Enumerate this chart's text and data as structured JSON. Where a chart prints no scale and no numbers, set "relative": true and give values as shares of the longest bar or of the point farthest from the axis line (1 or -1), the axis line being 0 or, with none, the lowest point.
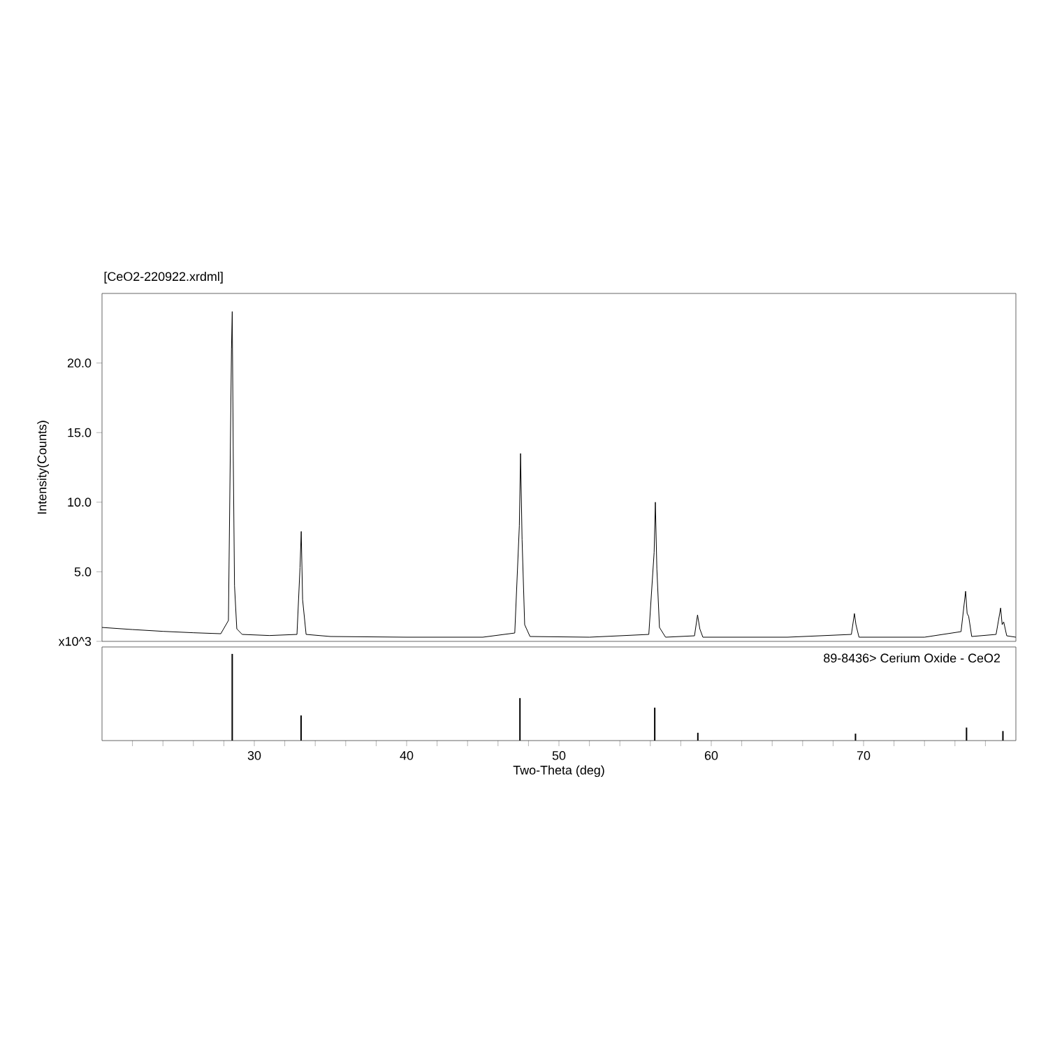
{
  "chart_data": [
    {
      "type": "line",
      "title": "[CeO2-220922.xrdml]",
      "ylabel": "Intensity(Counts)",
      "series": [
        {
          "color": "#000000",
          "x": [
            20,
            22,
            24,
            26,
            27.8,
            28.3,
            28.5,
            28.55,
            28.62,
            28.7,
            28.85,
            29.2,
            31,
            32.8,
            33.0,
            33.08,
            33.17,
            33.4,
            35,
            40,
            45,
            47.1,
            47.4,
            47.48,
            47.58,
            47.75,
            48.1,
            52,
            55.9,
            56.25,
            56.33,
            56.43,
            56.6,
            57.0,
            58.9,
            59.1,
            59.25,
            59.45,
            65,
            69.2,
            69.4,
            69.5,
            69.7,
            74,
            76.4,
            76.7,
            76.8,
            76.9,
            77.1,
            78.7,
            79.0,
            79.1,
            79.2,
            79.4,
            80
          ],
          "values": [
            1.0,
            0.85,
            0.72,
            0.62,
            0.55,
            1.5,
            21.0,
            23.7,
            13.0,
            4.0,
            0.9,
            0.5,
            0.42,
            0.5,
            5.3,
            7.9,
            3.0,
            0.5,
            0.35,
            0.3,
            0.3,
            0.6,
            8.3,
            13.5,
            7.3,
            1.2,
            0.35,
            0.3,
            0.5,
            6.4,
            10.0,
            5.2,
            1.0,
            0.3,
            0.4,
            1.9,
            0.9,
            0.3,
            0.3,
            0.5,
            2.0,
            1.2,
            0.3,
            0.3,
            0.7,
            3.6,
            2.0,
            1.8,
            0.35,
            0.5,
            2.4,
            1.2,
            1.4,
            0.4,
            0.3
          ]
        }
      ],
      "xlim": [
        20,
        80
      ],
      "ylim": [
        0,
        25
      ],
      "yticks": [
        {
          "value": 0,
          "label": "x10^3"
        },
        {
          "value": 5,
          "label": "5.0"
        },
        {
          "value": 10,
          "label": "10.0"
        },
        {
          "value": 15,
          "label": "15.0"
        },
        {
          "value": 20,
          "label": "20.0"
        }
      ],
      "tick_labels": "y"
    },
    {
      "type": "bar",
      "xlabel": "Two-Theta (deg)",
      "annotations": [
        "89-8436> Cerium Oxide - CeO2"
      ],
      "x": [
        28.55,
        33.07,
        47.44,
        56.29,
        59.12,
        69.47,
        76.76,
        79.15
      ],
      "series": [
        {
          "color": "#000000",
          "values": [
            1.0,
            0.29,
            0.49,
            0.38,
            0.09,
            0.08,
            0.15,
            0.11
          ]
        }
      ],
      "relative": true,
      "xlim": [
        20,
        80
      ],
      "xticks": [
        {
          "value": 22,
          "label": null
        },
        {
          "value": 24,
          "label": null
        },
        {
          "value": 26,
          "label": null
        },
        {
          "value": 28,
          "label": null
        },
        30,
        {
          "value": 32,
          "label": null
        },
        {
          "value": 34,
          "label": null
        },
        {
          "value": 36,
          "label": null
        },
        {
          "value": 38,
          "label": null
        },
        40,
        {
          "value": 42,
          "label": null
        },
        {
          "value": 44,
          "label": null
        },
        {
          "value": 46,
          "label": null
        },
        {
          "value": 48,
          "label": null
        },
        50,
        {
          "value": 52,
          "label": null
        },
        {
          "value": 54,
          "label": null
        },
        {
          "value": 56,
          "label": null
        },
        {
          "value": 58,
          "label": null
        },
        60,
        {
          "value": 62,
          "label": null
        },
        {
          "value": 64,
          "label": null
        },
        {
          "value": 66,
          "label": null
        },
        {
          "value": 68,
          "label": null
        },
        70,
        {
          "value": 72,
          "label": null
        },
        {
          "value": 74,
          "label": null
        },
        {
          "value": 76,
          "label": null
        },
        {
          "value": 78,
          "label": null
        }
      ],
      "tick_labels": "x"
    }
  ]
}
